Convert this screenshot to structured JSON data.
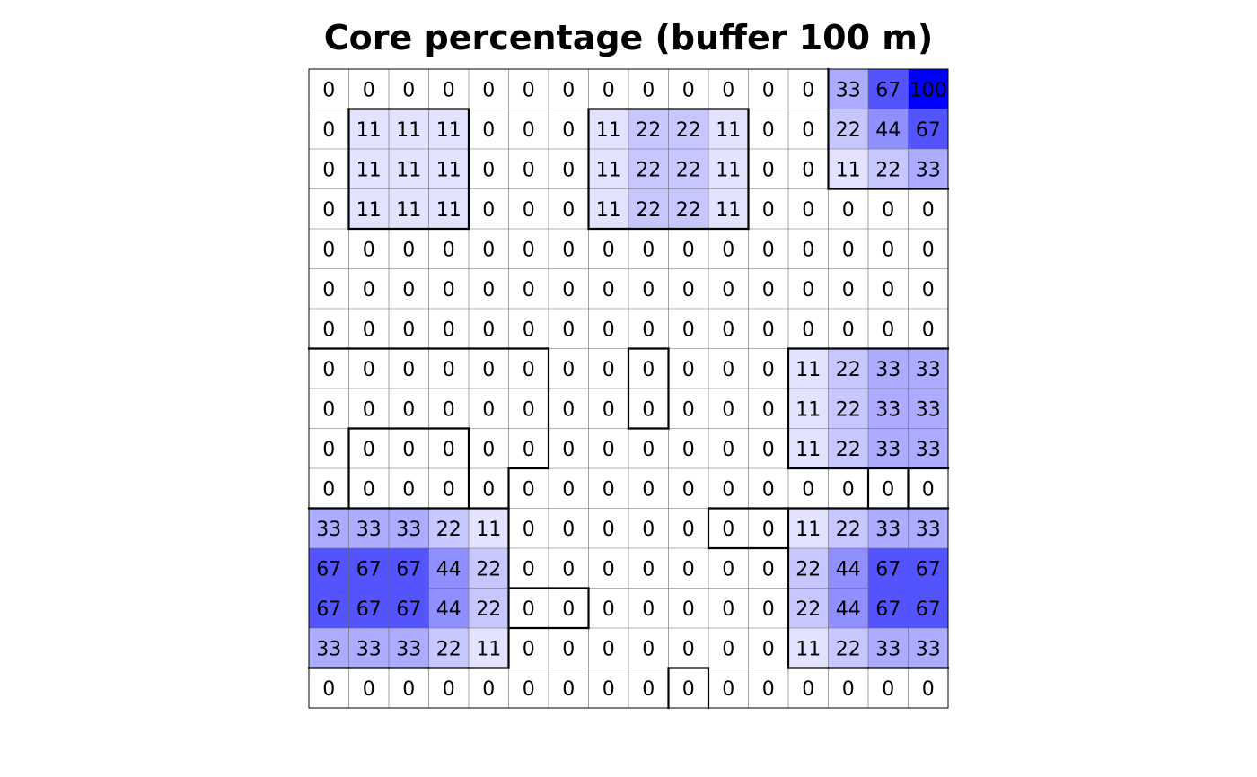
{
  "chart_data": {
    "type": "heatmap",
    "title": "Core percentage (buffer 100 m)",
    "xlabel": "",
    "ylabel": "",
    "rows": 16,
    "cols": 16,
    "value_range": [
      0,
      100
    ],
    "color_low": "#ffffff",
    "color_high": "#0000ff",
    "grid_color": "#666666",
    "boundary_color": "#000000",
    "values": [
      [
        0,
        0,
        0,
        0,
        0,
        0,
        0,
        0,
        0,
        0,
        0,
        0,
        0,
        33,
        67,
        100
      ],
      [
        0,
        11,
        11,
        11,
        0,
        0,
        0,
        11,
        22,
        22,
        11,
        0,
        0,
        22,
        44,
        67
      ],
      [
        0,
        11,
        11,
        11,
        0,
        0,
        0,
        11,
        22,
        22,
        11,
        0,
        0,
        11,
        22,
        33
      ],
      [
        0,
        11,
        11,
        11,
        0,
        0,
        0,
        11,
        22,
        22,
        11,
        0,
        0,
        0,
        0,
        0
      ],
      [
        0,
        0,
        0,
        0,
        0,
        0,
        0,
        0,
        0,
        0,
        0,
        0,
        0,
        0,
        0,
        0
      ],
      [
        0,
        0,
        0,
        0,
        0,
        0,
        0,
        0,
        0,
        0,
        0,
        0,
        0,
        0,
        0,
        0
      ],
      [
        0,
        0,
        0,
        0,
        0,
        0,
        0,
        0,
        0,
        0,
        0,
        0,
        0,
        0,
        0,
        0
      ],
      [
        0,
        0,
        0,
        0,
        0,
        0,
        0,
        0,
        0,
        0,
        0,
        0,
        11,
        22,
        33,
        33
      ],
      [
        0,
        0,
        0,
        0,
        0,
        0,
        0,
        0,
        0,
        0,
        0,
        0,
        11,
        22,
        33,
        33
      ],
      [
        0,
        0,
        0,
        0,
        0,
        0,
        0,
        0,
        0,
        0,
        0,
        0,
        11,
        22,
        33,
        33
      ],
      [
        0,
        0,
        0,
        0,
        0,
        0,
        0,
        0,
        0,
        0,
        0,
        0,
        0,
        0,
        0,
        0
      ],
      [
        33,
        33,
        33,
        22,
        11,
        0,
        0,
        0,
        0,
        0,
        0,
        0,
        11,
        22,
        33,
        33
      ],
      [
        67,
        67,
        67,
        44,
        22,
        0,
        0,
        0,
        0,
        0,
        0,
        0,
        22,
        44,
        67,
        67
      ],
      [
        67,
        67,
        67,
        44,
        22,
        0,
        0,
        0,
        0,
        0,
        0,
        0,
        22,
        44,
        67,
        67
      ],
      [
        33,
        33,
        33,
        22,
        11,
        0,
        0,
        0,
        0,
        0,
        0,
        0,
        11,
        22,
        33,
        33
      ],
      [
        0,
        0,
        0,
        0,
        0,
        0,
        0,
        0,
        0,
        0,
        0,
        0,
        0,
        0,
        0,
        0
      ]
    ],
    "patches": [
      [
        0,
        0,
        0,
        0,
        0,
        0,
        0,
        0,
        0,
        0,
        0,
        0,
        0,
        1,
        1,
        1
      ],
      [
        0,
        2,
        2,
        2,
        0,
        0,
        0,
        3,
        3,
        3,
        3,
        0,
        0,
        1,
        1,
        1
      ],
      [
        0,
        2,
        2,
        2,
        0,
        0,
        0,
        3,
        3,
        3,
        3,
        0,
        0,
        1,
        1,
        1
      ],
      [
        0,
        2,
        2,
        2,
        0,
        0,
        0,
        3,
        3,
        3,
        3,
        0,
        0,
        0,
        0,
        0
      ],
      [
        0,
        0,
        0,
        0,
        0,
        0,
        0,
        0,
        0,
        0,
        0,
        0,
        0,
        0,
        0,
        0
      ],
      [
        0,
        0,
        0,
        0,
        0,
        0,
        0,
        0,
        0,
        0,
        0,
        0,
        0,
        0,
        0,
        0
      ],
      [
        0,
        0,
        0,
        0,
        0,
        0,
        0,
        0,
        0,
        0,
        0,
        0,
        0,
        0,
        0,
        0
      ],
      [
        4,
        4,
        4,
        4,
        4,
        4,
        0,
        0,
        5,
        0,
        0,
        0,
        6,
        6,
        6,
        6
      ],
      [
        4,
        4,
        4,
        4,
        4,
        4,
        0,
        0,
        5,
        0,
        0,
        0,
        6,
        6,
        6,
        6
      ],
      [
        4,
        7,
        7,
        7,
        4,
        4,
        0,
        0,
        0,
        0,
        0,
        0,
        6,
        6,
        6,
        6
      ],
      [
        4,
        7,
        7,
        7,
        4,
        0,
        0,
        0,
        0,
        0,
        0,
        0,
        0,
        0,
        8,
        0
      ],
      [
        9,
        9,
        9,
        9,
        9,
        0,
        0,
        0,
        0,
        0,
        10,
        10,
        11,
        11,
        11,
        11
      ],
      [
        9,
        9,
        9,
        9,
        9,
        0,
        0,
        0,
        0,
        0,
        0,
        0,
        11,
        11,
        11,
        11
      ],
      [
        9,
        9,
        9,
        9,
        9,
        12,
        12,
        0,
        0,
        0,
        0,
        0,
        11,
        11,
        11,
        11
      ],
      [
        9,
        9,
        9,
        9,
        9,
        0,
        0,
        0,
        0,
        0,
        0,
        0,
        11,
        11,
        11,
        11
      ],
      [
        0,
        0,
        0,
        0,
        0,
        0,
        0,
        0,
        0,
        13,
        0,
        0,
        0,
        0,
        0,
        0
      ]
    ]
  }
}
